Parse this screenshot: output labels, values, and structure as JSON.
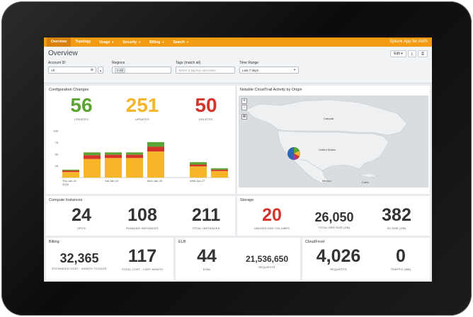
{
  "app_title": "Splunk App for AWS",
  "nav": [
    {
      "label": "Overview",
      "caret": false,
      "active": true
    },
    {
      "label": "Topology",
      "caret": false
    },
    {
      "label": "Usage",
      "caret": true
    },
    {
      "label": "Security",
      "caret": true
    },
    {
      "label": "Billing",
      "caret": true
    },
    {
      "label": "Search",
      "caret": true
    }
  ],
  "header": {
    "title": "Overview",
    "edit_label": "Edit",
    "caret": "▾",
    "export_icon": "⤓",
    "print_icon": "⎙"
  },
  "filters": {
    "account": {
      "label": "Account ID",
      "value": "All"
    },
    "regions": {
      "label": "Regions",
      "token": "× All"
    },
    "tags": {
      "label": "Tags (match all)",
      "placeholder": "Select a tag key and value"
    },
    "time": {
      "label": "Time Range",
      "value": "Last 7 days"
    }
  },
  "config": {
    "title": "Configuration Changes",
    "creates": {
      "value": "56",
      "label": "CREATES",
      "color": "#5ba432"
    },
    "updates": {
      "value": "251",
      "label": "UPDATES",
      "color": "#f7b52a"
    },
    "deletes": {
      "value": "50",
      "label": "DELETES",
      "color": "#d6332b"
    }
  },
  "chart_data": {
    "type": "bar",
    "stacked": true,
    "ylim": [
      0,
      100
    ],
    "yticks": [
      25,
      50,
      75,
      100
    ],
    "x_tick_labels": [
      {
        "index": 0,
        "lines": [
          "Thu Jan 21",
          "2016"
        ]
      },
      {
        "index": 2,
        "lines": [
          "Sat Jan 23"
        ]
      },
      {
        "index": 4,
        "lines": [
          "Mon Jan 25"
        ]
      },
      {
        "index": 6,
        "lines": [
          "Wed Jan 27"
        ]
      }
    ],
    "categories": [
      "Thu Jan 21",
      "Fri Jan 22",
      "Sat Jan 23",
      "Sun Jan 24",
      "Mon Jan 25",
      "Tue Jan 26",
      "Wed Jan 27",
      "Thu Jan 28"
    ],
    "series": [
      {
        "color": "#f7b52a",
        "values": [
          12,
          40,
          42,
          42,
          56,
          0,
          24,
          14
        ]
      },
      {
        "color": "#d6332b",
        "values": [
          3,
          8,
          7,
          7,
          10,
          0,
          4,
          3
        ]
      },
      {
        "color": "#5ba432",
        "values": [
          2,
          6,
          5,
          5,
          10,
          0,
          5,
          3
        ]
      }
    ]
  },
  "map": {
    "title": "Notable CloudTrail Activity by Origin",
    "labels": {
      "canada": "Canada",
      "usa": "United States",
      "mexico": "Mexico",
      "cuba": "Cuba"
    },
    "zoom_in": "+",
    "zoom_out": "−",
    "reset_icon": "⊕"
  },
  "compute": {
    "title": "Compute Instances",
    "vpcs": {
      "value": "24",
      "label": "VPCS"
    },
    "running": {
      "value": "108",
      "label": "RUNNING INSTANCES"
    },
    "total": {
      "value": "211",
      "label": "TOTAL INSTANCES"
    }
  },
  "storage": {
    "title": "Storage",
    "unused": {
      "value": "20",
      "label": "UNUSED EBS VOLUMES",
      "color": "#d6332b"
    },
    "ebs": {
      "value": "26,050",
      "label": "TOTAL EBS SIZE (GB)"
    },
    "s3": {
      "value": "382",
      "label": "S3 SIZE (GB)"
    }
  },
  "billing": {
    "title": "Billing",
    "estimated": {
      "value": "32,365",
      "label": "ESTIMATED COST - MONTH TO DATE"
    },
    "last": {
      "value": "117",
      "label": "TOTAL COST - LAST MONTH"
    }
  },
  "elb": {
    "title": "ELB",
    "elbs": {
      "value": "44",
      "label": "ELBs"
    },
    "requests": {
      "value": "21,536,650",
      "label": "REQUESTS"
    }
  },
  "cloudfront": {
    "title": "CloudFront",
    "requests": {
      "value": "4,026",
      "label": "REQUESTS"
    },
    "traffic": {
      "value": "0",
      "label": "TRAFFIC (MB)"
    }
  }
}
